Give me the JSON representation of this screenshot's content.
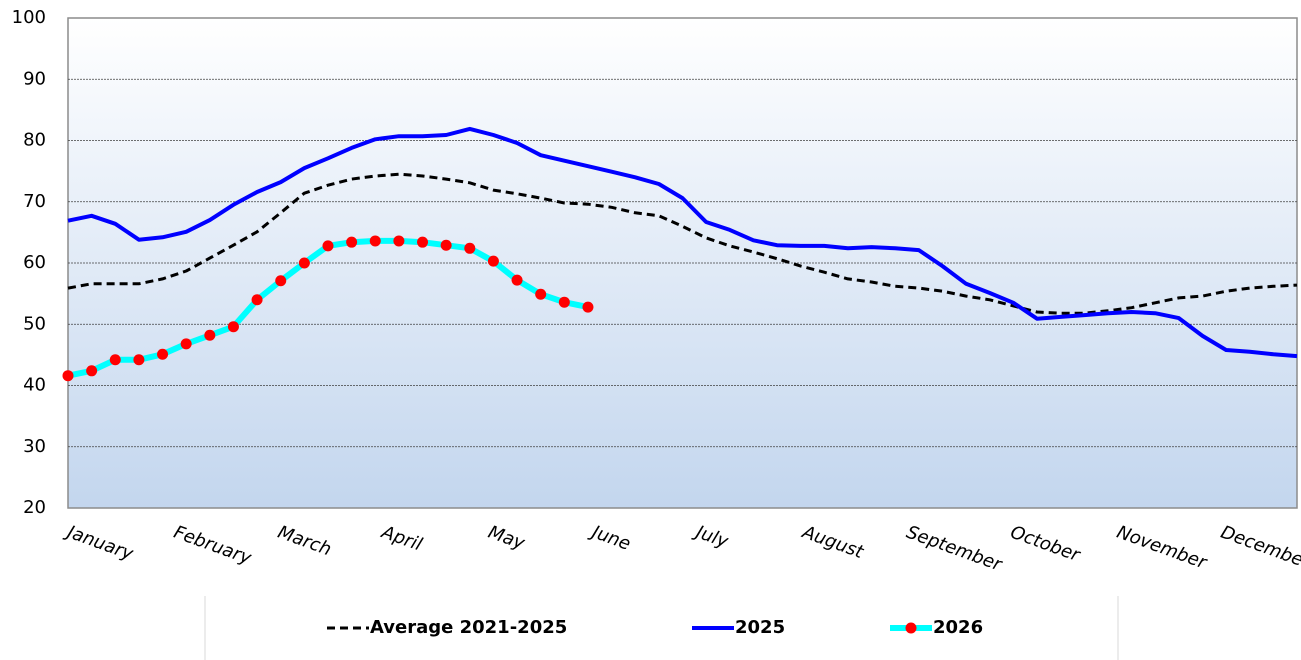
{
  "chart_data": {
    "type": "line",
    "x": [
      1,
      2,
      3,
      4,
      5,
      6,
      7,
      8,
      9,
      10,
      11,
      12,
      13,
      14,
      15,
      16,
      17,
      18,
      19,
      20,
      21,
      22,
      23,
      24,
      25,
      26,
      27,
      28,
      29,
      30,
      31,
      32,
      33,
      34,
      35,
      36,
      37,
      38,
      39,
      40,
      41,
      42,
      43,
      44,
      45,
      46,
      47,
      48,
      49,
      50,
      51,
      52,
      53
    ],
    "xlim": [
      1,
      53
    ],
    "xticks": [
      {
        "value": 1,
        "label": "January"
      },
      {
        "value": 5.5,
        "label": "February"
      },
      {
        "value": 9.9,
        "label": "March"
      },
      {
        "value": 14.3,
        "label": "April"
      },
      {
        "value": 18.8,
        "label": "May"
      },
      {
        "value": 23.2,
        "label": "June"
      },
      {
        "value": 27.6,
        "label": "July"
      },
      {
        "value": 32.1,
        "label": "August"
      },
      {
        "value": 36.5,
        "label": "September"
      },
      {
        "value": 40.9,
        "label": "October"
      },
      {
        "value": 45.4,
        "label": "November"
      },
      {
        "value": 49.8,
        "label": "December"
      }
    ],
    "ylim": [
      20,
      100
    ],
    "yticks": [
      20,
      30,
      40,
      50,
      60,
      70,
      80,
      90,
      100
    ],
    "grid": true,
    "legend_position": "bottom",
    "series": [
      {
        "name": "Average 2021-2025",
        "color": "#000000",
        "dash": true,
        "marker": false,
        "values": [
          55.9,
          56.6,
          56.6,
          56.6,
          57.4,
          58.7,
          60.8,
          62.9,
          65.1,
          68.2,
          71.4,
          72.7,
          73.7,
          74.2,
          74.5,
          74.2,
          73.7,
          73.1,
          71.9,
          71.3,
          70.6,
          69.8,
          69.6,
          69.1,
          68.2,
          67.7,
          66.0,
          64.1,
          62.8,
          61.8,
          60.7,
          59.5,
          58.5,
          57.4,
          56.9,
          56.2,
          55.9,
          55.4,
          54.6,
          54.0,
          53.0,
          52.0,
          51.8,
          51.8,
          52.2,
          52.7,
          53.5,
          54.3,
          54.6,
          55.4,
          55.9,
          56.2,
          56.4
        ]
      },
      {
        "name": "2025",
        "color": "#0000ff",
        "dash": false,
        "marker": false,
        "values": [
          66.9,
          67.7,
          66.4,
          63.8,
          64.2,
          65.1,
          67.0,
          69.5,
          71.6,
          73.2,
          75.5,
          77.1,
          78.8,
          80.2,
          80.7,
          80.7,
          80.9,
          81.9,
          80.9,
          79.6,
          77.6,
          76.7,
          75.8,
          74.9,
          74.0,
          72.9,
          70.6,
          66.7,
          65.4,
          63.7,
          62.9,
          62.8,
          62.8,
          62.4,
          62.6,
          62.4,
          62.1,
          59.5,
          56.6,
          55.1,
          53.5,
          50.9,
          51.2,
          51.5,
          51.8,
          52.0,
          51.8,
          51.0,
          48.1,
          45.8,
          45.5,
          45.1,
          44.8
        ]
      },
      {
        "name": "2026",
        "color": "#00ffff",
        "marker_color": "#ff0000",
        "dash": false,
        "marker": true,
        "values": [
          41.6,
          42.4,
          44.2,
          44.2,
          45.1,
          46.8,
          48.2,
          49.6,
          54.0,
          57.1,
          60.0,
          62.8,
          63.4,
          63.6,
          63.6,
          63.4,
          62.9,
          62.4,
          60.3,
          57.2,
          54.9,
          53.6,
          52.8,
          null,
          null,
          null,
          null,
          null,
          null,
          null,
          null,
          null,
          null,
          null,
          null,
          null,
          null,
          null,
          null,
          null,
          null,
          null,
          null,
          null,
          null,
          null,
          null,
          null,
          null,
          null,
          null,
          null,
          null
        ]
      }
    ]
  }
}
